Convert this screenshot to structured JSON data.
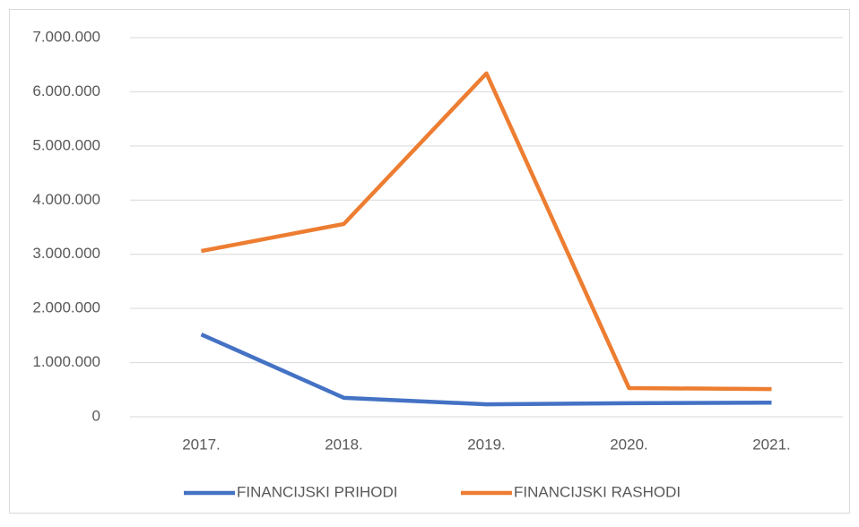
{
  "chart_data": {
    "type": "line",
    "categories": [
      "2017.",
      "2018.",
      "2019.",
      "2020.",
      "2021."
    ],
    "series": [
      {
        "name": "FINANCIJSKI PRIHODI",
        "color": "#4472c4",
        "values": [
          1520000,
          350000,
          230000,
          250000,
          260000
        ]
      },
      {
        "name": "FINANCIJSKI RASHODI",
        "color": "#ed7d31",
        "values": [
          3060000,
          3560000,
          6340000,
          530000,
          510000
        ]
      }
    ],
    "ylim": [
      0,
      7000000
    ],
    "yticks": [
      0,
      {
        "value": 1000000,
        "label": "1.000.000"
      },
      {
        "value": 2000000,
        "label": "2.000.000"
      },
      {
        "value": 3000000,
        "label": "3.000.000"
      },
      {
        "value": 4000000,
        "label": "4.000.000"
      },
      {
        "value": 5000000,
        "label": "5.000.000"
      },
      {
        "value": 6000000,
        "label": "6.000.000"
      },
      {
        "value": 7000000,
        "label": "7.000.000"
      }
    ],
    "grid": true,
    "legend": "bottom"
  }
}
